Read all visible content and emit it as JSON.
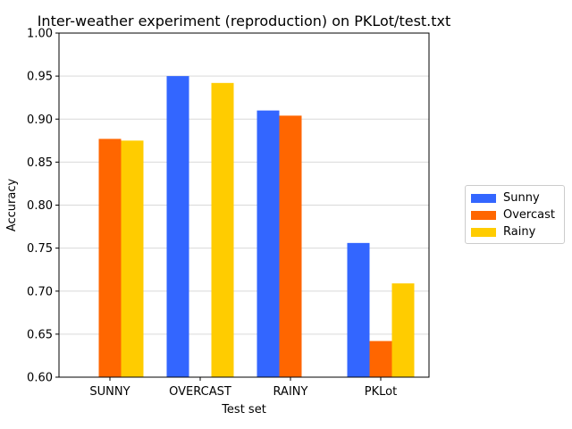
{
  "chart_data": {
    "type": "bar",
    "title": "Inter-weather experiment (reproduction) on PKLot/test.txt",
    "xlabel": "Test set",
    "ylabel": "Accuracy",
    "categories": [
      "SUNNY",
      "OVERCAST",
      "RAINY",
      "PKLot"
    ],
    "series": [
      {
        "name": "Sunny",
        "color": "#3366ff",
        "values": [
          null,
          0.95,
          0.91,
          0.756
        ]
      },
      {
        "name": "Overcast",
        "color": "#ff6600",
        "values": [
          0.877,
          null,
          0.904,
          0.642
        ]
      },
      {
        "name": "Rainy",
        "color": "#ffcc00",
        "values": [
          0.875,
          0.942,
          null,
          0.709
        ]
      }
    ],
    "ylim": [
      0.6,
      1.0
    ],
    "yticks": [
      "0.60",
      "0.65",
      "0.70",
      "0.75",
      "0.80",
      "0.85",
      "0.90",
      "0.95",
      "1.00"
    ],
    "grid": "horizontal",
    "legend_position": "right"
  }
}
